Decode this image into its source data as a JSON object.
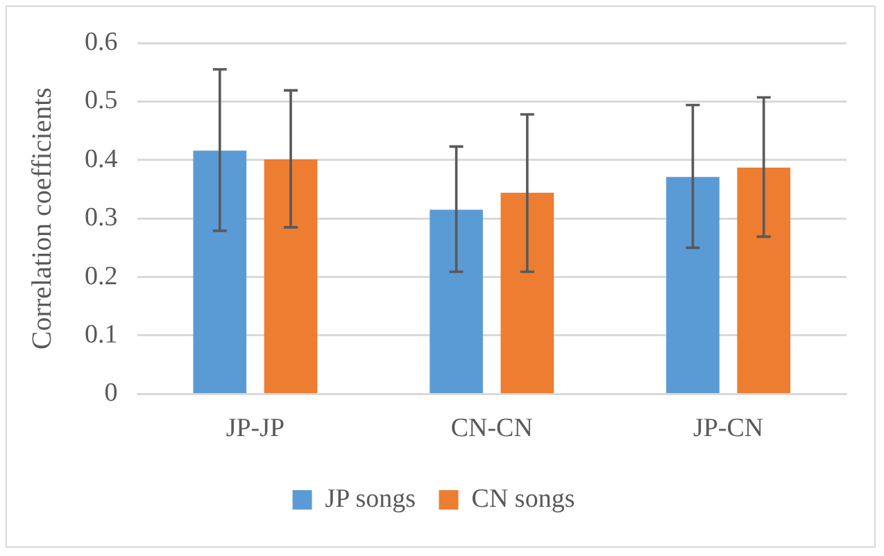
{
  "chart_data": {
    "type": "bar",
    "ylabel": "Correlation coefficients",
    "categories": [
      "JP-JP",
      "CN-CN",
      "JP-CN"
    ],
    "series": [
      {
        "name": "JP songs",
        "color": "#5b9bd5",
        "values": [
          0.416,
          0.315,
          0.371
        ],
        "errors": [
          [
            0.279,
            0.555
          ],
          [
            0.209,
            0.423
          ],
          [
            0.25,
            0.494
          ]
        ]
      },
      {
        "name": "CN songs",
        "color": "#ed7d31",
        "values": [
          0.401,
          0.344,
          0.387
        ],
        "errors": [
          [
            0.285,
            0.519
          ],
          [
            0.209,
            0.478
          ],
          [
            0.269,
            0.507
          ]
        ]
      }
    ],
    "ylim": [
      0,
      0.6
    ],
    "yticks": [
      0,
      0.1,
      0.2,
      0.3,
      0.4,
      0.5,
      0.6
    ],
    "grid": "y",
    "legend": "bottom"
  }
}
